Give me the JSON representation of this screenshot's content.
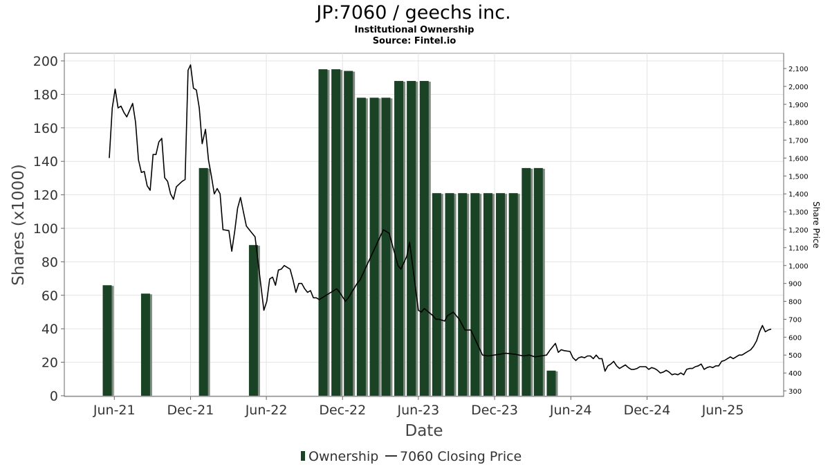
{
  "chart_data": {
    "type": "bar+line",
    "title": "JP:7060 / geechs inc.",
    "subtitle_lines": [
      "Institutional Ownership",
      "Source: Fintel.io"
    ],
    "xlabel": "Date",
    "ylabel_left": "Shares (x1000)",
    "ylabel_right": "Share Price",
    "ylim_left": [
      0,
      200
    ],
    "ylim_right": [
      300,
      2100
    ],
    "left_ticks": [
      0,
      20,
      40,
      60,
      80,
      100,
      120,
      140,
      160,
      180,
      200
    ],
    "right_ticks": [
      300,
      400,
      500,
      600,
      700,
      800,
      900,
      1000,
      1100,
      1200,
      1300,
      1400,
      1500,
      1600,
      1700,
      1800,
      1900,
      2000,
      2100
    ],
    "right_tick_labels": [
      "300",
      "400",
      "500",
      "600",
      "700",
      "800",
      "900",
      "1,000",
      "1,100",
      "1,200",
      "1,300",
      "1,400",
      "1,500",
      "1,600",
      "1,700",
      "1,800",
      "1,900",
      "2,000",
      "2,100"
    ],
    "x_range": [
      "2021-02-01",
      "2025-10-25"
    ],
    "x_ticks": [
      {
        "date": "2021-06-01",
        "label": "Jun-21"
      },
      {
        "date": "2021-12-01",
        "label": "Dec-21"
      },
      {
        "date": "2022-06-01",
        "label": "Jun-22"
      },
      {
        "date": "2022-12-01",
        "label": "Dec-22"
      },
      {
        "date": "2023-06-01",
        "label": "Jun-23"
      },
      {
        "date": "2023-12-01",
        "label": "Dec-23"
      },
      {
        "date": "2024-06-01",
        "label": "Jun-24"
      },
      {
        "date": "2024-12-01",
        "label": "Dec-24"
      },
      {
        "date": "2025-06-01",
        "label": "Jun-25"
      }
    ],
    "grid": true,
    "legend_position": "bottom",
    "series": [
      {
        "name": "Ownership",
        "type": "bar",
        "color": "#1a4224",
        "points": [
          {
            "date": "2021-05-15",
            "value": 66
          },
          {
            "date": "2021-08-15",
            "value": 61
          },
          {
            "date": "2022-01-01",
            "value": 136
          },
          {
            "date": "2022-05-01",
            "value": 90
          },
          {
            "date": "2022-10-15",
            "value": 195
          },
          {
            "date": "2022-11-15",
            "value": 195
          },
          {
            "date": "2022-12-15",
            "value": 194
          },
          {
            "date": "2023-01-15",
            "value": 178
          },
          {
            "date": "2023-02-15",
            "value": 178
          },
          {
            "date": "2023-03-15",
            "value": 178
          },
          {
            "date": "2023-04-15",
            "value": 188
          },
          {
            "date": "2023-05-15",
            "value": 188
          },
          {
            "date": "2023-06-15",
            "value": 188
          },
          {
            "date": "2023-07-15",
            "value": 121
          },
          {
            "date": "2023-08-15",
            "value": 121
          },
          {
            "date": "2023-09-15",
            "value": 121
          },
          {
            "date": "2023-10-15",
            "value": 121
          },
          {
            "date": "2023-11-15",
            "value": 121
          },
          {
            "date": "2023-12-15",
            "value": 121
          },
          {
            "date": "2024-01-15",
            "value": 121
          },
          {
            "date": "2024-02-15",
            "value": 136
          },
          {
            "date": "2024-03-15",
            "value": 136
          },
          {
            "date": "2024-04-15",
            "value": 15
          }
        ]
      },
      {
        "name": "7060 Closing Price",
        "type": "line",
        "color": "#000000",
        "points": [
          {
            "date": "2021-05-20",
            "value": 1600
          },
          {
            "date": "2021-05-27",
            "value": 1880
          },
          {
            "date": "2021-06-03",
            "value": 1985
          },
          {
            "date": "2021-06-10",
            "value": 1880
          },
          {
            "date": "2021-06-17",
            "value": 1890
          },
          {
            "date": "2021-06-24",
            "value": 1855
          },
          {
            "date": "2021-07-01",
            "value": 1830
          },
          {
            "date": "2021-07-15",
            "value": 1905
          },
          {
            "date": "2021-07-22",
            "value": 1800
          },
          {
            "date": "2021-07-29",
            "value": 1590
          },
          {
            "date": "2021-08-05",
            "value": 1520
          },
          {
            "date": "2021-08-12",
            "value": 1525
          },
          {
            "date": "2021-08-19",
            "value": 1445
          },
          {
            "date": "2021-08-26",
            "value": 1420
          },
          {
            "date": "2021-09-02",
            "value": 1620
          },
          {
            "date": "2021-09-09",
            "value": 1620
          },
          {
            "date": "2021-09-16",
            "value": 1690
          },
          {
            "date": "2021-09-23",
            "value": 1710
          },
          {
            "date": "2021-09-30",
            "value": 1490
          },
          {
            "date": "2021-10-07",
            "value": 1470
          },
          {
            "date": "2021-10-14",
            "value": 1400
          },
          {
            "date": "2021-10-21",
            "value": 1370
          },
          {
            "date": "2021-10-28",
            "value": 1440
          },
          {
            "date": "2021-11-11",
            "value": 1470
          },
          {
            "date": "2021-11-18",
            "value": 1480
          },
          {
            "date": "2021-11-25",
            "value": 2090
          },
          {
            "date": "2021-12-01",
            "value": 2120
          },
          {
            "date": "2021-12-08",
            "value": 1990
          },
          {
            "date": "2021-12-15",
            "value": 1980
          },
          {
            "date": "2021-12-22",
            "value": 1880
          },
          {
            "date": "2021-12-29",
            "value": 1680
          },
          {
            "date": "2022-01-06",
            "value": 1760
          },
          {
            "date": "2022-01-13",
            "value": 1590
          },
          {
            "date": "2022-01-20",
            "value": 1500
          },
          {
            "date": "2022-01-27",
            "value": 1400
          },
          {
            "date": "2022-02-03",
            "value": 1430
          },
          {
            "date": "2022-02-10",
            "value": 1400
          },
          {
            "date": "2022-02-17",
            "value": 1200
          },
          {
            "date": "2022-03-03",
            "value": 1195
          },
          {
            "date": "2022-03-10",
            "value": 1080
          },
          {
            "date": "2022-03-17",
            "value": 1190
          },
          {
            "date": "2022-03-24",
            "value": 1320
          },
          {
            "date": "2022-03-31",
            "value": 1380
          },
          {
            "date": "2022-04-07",
            "value": 1300
          },
          {
            "date": "2022-04-14",
            "value": 1220
          },
          {
            "date": "2022-04-21",
            "value": 1200
          },
          {
            "date": "2022-04-28",
            "value": 1180
          },
          {
            "date": "2022-05-05",
            "value": 1160
          },
          {
            "date": "2022-05-26",
            "value": 750
          },
          {
            "date": "2022-06-02",
            "value": 800
          },
          {
            "date": "2022-06-09",
            "value": 925
          },
          {
            "date": "2022-06-16",
            "value": 935
          },
          {
            "date": "2022-06-23",
            "value": 890
          },
          {
            "date": "2022-06-30",
            "value": 975
          },
          {
            "date": "2022-07-07",
            "value": 980
          },
          {
            "date": "2022-07-14",
            "value": 1000
          },
          {
            "date": "2022-07-21",
            "value": 990
          },
          {
            "date": "2022-07-28",
            "value": 980
          },
          {
            "date": "2022-08-04",
            "value": 920
          },
          {
            "date": "2022-08-11",
            "value": 850
          },
          {
            "date": "2022-08-18",
            "value": 900
          },
          {
            "date": "2022-08-25",
            "value": 900
          },
          {
            "date": "2022-09-01",
            "value": 870
          },
          {
            "date": "2022-09-08",
            "value": 850
          },
          {
            "date": "2022-09-15",
            "value": 860
          },
          {
            "date": "2022-09-22",
            "value": 820
          },
          {
            "date": "2022-09-29",
            "value": 820
          },
          {
            "date": "2022-10-06",
            "value": 810
          },
          {
            "date": "2022-11-17",
            "value": 870
          },
          {
            "date": "2022-11-24",
            "value": 850
          },
          {
            "date": "2022-12-08",
            "value": 800
          },
          {
            "date": "2022-12-15",
            "value": 820
          },
          {
            "date": "2023-01-05",
            "value": 900
          },
          {
            "date": "2023-01-12",
            "value": 920
          },
          {
            "date": "2023-03-09",
            "value": 1200
          },
          {
            "date": "2023-03-23",
            "value": 1180
          },
          {
            "date": "2023-04-13",
            "value": 1000
          },
          {
            "date": "2023-04-20",
            "value": 980
          },
          {
            "date": "2023-05-04",
            "value": 1050
          },
          {
            "date": "2023-05-11",
            "value": 1130
          },
          {
            "date": "2023-06-01",
            "value": 750
          },
          {
            "date": "2023-06-08",
            "value": 740
          },
          {
            "date": "2023-06-15",
            "value": 760
          },
          {
            "date": "2023-07-06",
            "value": 720
          },
          {
            "date": "2023-07-13",
            "value": 700
          },
          {
            "date": "2023-07-20",
            "value": 700
          },
          {
            "date": "2023-08-03",
            "value": 690
          },
          {
            "date": "2023-08-10",
            "value": 720
          },
          {
            "date": "2023-08-24",
            "value": 740
          },
          {
            "date": "2023-09-07",
            "value": 700
          },
          {
            "date": "2023-09-21",
            "value": 640
          },
          {
            "date": "2023-10-05",
            "value": 640
          },
          {
            "date": "2023-10-19",
            "value": 570
          },
          {
            "date": "2023-11-02",
            "value": 500
          },
          {
            "date": "2023-11-16",
            "value": 495
          },
          {
            "date": "2023-12-14",
            "value": 505
          },
          {
            "date": "2023-12-28",
            "value": 510
          },
          {
            "date": "2024-01-18",
            "value": 505
          },
          {
            "date": "2024-02-08",
            "value": 495
          },
          {
            "date": "2024-02-22",
            "value": 500
          },
          {
            "date": "2024-03-07",
            "value": 490
          },
          {
            "date": "2024-03-21",
            "value": 495
          },
          {
            "date": "2024-04-04",
            "value": 500
          },
          {
            "date": "2024-04-11",
            "value": 525
          },
          {
            "date": "2024-04-25",
            "value": 565
          },
          {
            "date": "2024-05-02",
            "value": 515
          },
          {
            "date": "2024-05-09",
            "value": 530
          },
          {
            "date": "2024-05-16",
            "value": 525
          },
          {
            "date": "2024-05-30",
            "value": 520
          },
          {
            "date": "2024-06-06",
            "value": 485
          },
          {
            "date": "2024-06-13",
            "value": 470
          },
          {
            "date": "2024-06-20",
            "value": 485
          },
          {
            "date": "2024-06-27",
            "value": 490
          },
          {
            "date": "2024-07-04",
            "value": 485
          },
          {
            "date": "2024-07-11",
            "value": 495
          },
          {
            "date": "2024-07-18",
            "value": 495
          },
          {
            "date": "2024-07-25",
            "value": 480
          },
          {
            "date": "2024-08-01",
            "value": 500
          },
          {
            "date": "2024-08-08",
            "value": 480
          },
          {
            "date": "2024-08-15",
            "value": 480
          },
          {
            "date": "2024-08-22",
            "value": 410
          },
          {
            "date": "2024-08-29",
            "value": 440
          },
          {
            "date": "2024-09-05",
            "value": 450
          },
          {
            "date": "2024-09-12",
            "value": 465
          },
          {
            "date": "2024-09-19",
            "value": 440
          },
          {
            "date": "2024-09-26",
            "value": 425
          },
          {
            "date": "2024-10-03",
            "value": 435
          },
          {
            "date": "2024-10-10",
            "value": 445
          },
          {
            "date": "2024-10-17",
            "value": 430
          },
          {
            "date": "2024-10-24",
            "value": 420
          },
          {
            "date": "2024-10-31",
            "value": 420
          },
          {
            "date": "2024-11-07",
            "value": 425
          },
          {
            "date": "2024-11-14",
            "value": 435
          },
          {
            "date": "2024-11-21",
            "value": 435
          },
          {
            "date": "2024-11-28",
            "value": 435
          },
          {
            "date": "2024-12-05",
            "value": 420
          },
          {
            "date": "2024-12-12",
            "value": 430
          },
          {
            "date": "2024-12-19",
            "value": 425
          },
          {
            "date": "2024-12-26",
            "value": 415
          },
          {
            "date": "2025-01-02",
            "value": 400
          },
          {
            "date": "2025-01-09",
            "value": 405
          },
          {
            "date": "2025-01-16",
            "value": 415
          },
          {
            "date": "2025-01-23",
            "value": 405
          },
          {
            "date": "2025-01-30",
            "value": 390
          },
          {
            "date": "2025-02-06",
            "value": 395
          },
          {
            "date": "2025-02-13",
            "value": 390
          },
          {
            "date": "2025-02-20",
            "value": 400
          },
          {
            "date": "2025-02-27",
            "value": 390
          },
          {
            "date": "2025-03-06",
            "value": 420
          },
          {
            "date": "2025-03-13",
            "value": 425
          },
          {
            "date": "2025-03-20",
            "value": 425
          },
          {
            "date": "2025-03-27",
            "value": 435
          },
          {
            "date": "2025-04-03",
            "value": 440
          },
          {
            "date": "2025-04-10",
            "value": 450
          },
          {
            "date": "2025-04-17",
            "value": 420
          },
          {
            "date": "2025-04-24",
            "value": 430
          },
          {
            "date": "2025-05-01",
            "value": 435
          },
          {
            "date": "2025-05-08",
            "value": 430
          },
          {
            "date": "2025-05-15",
            "value": 440
          },
          {
            "date": "2025-05-22",
            "value": 440
          },
          {
            "date": "2025-05-29",
            "value": 465
          },
          {
            "date": "2025-06-05",
            "value": 470
          },
          {
            "date": "2025-06-12",
            "value": 480
          },
          {
            "date": "2025-06-19",
            "value": 490
          },
          {
            "date": "2025-06-26",
            "value": 480
          },
          {
            "date": "2025-07-03",
            "value": 490
          },
          {
            "date": "2025-07-10",
            "value": 500
          },
          {
            "date": "2025-07-17",
            "value": 500
          },
          {
            "date": "2025-07-24",
            "value": 510
          },
          {
            "date": "2025-07-31",
            "value": 520
          },
          {
            "date": "2025-08-07",
            "value": 530
          },
          {
            "date": "2025-08-14",
            "value": 550
          },
          {
            "date": "2025-08-21",
            "value": 580
          },
          {
            "date": "2025-08-28",
            "value": 630
          },
          {
            "date": "2025-09-04",
            "value": 665
          },
          {
            "date": "2025-09-11",
            "value": 630
          },
          {
            "date": "2025-09-18",
            "value": 640
          },
          {
            "date": "2025-09-25",
            "value": 645
          }
        ]
      }
    ]
  }
}
